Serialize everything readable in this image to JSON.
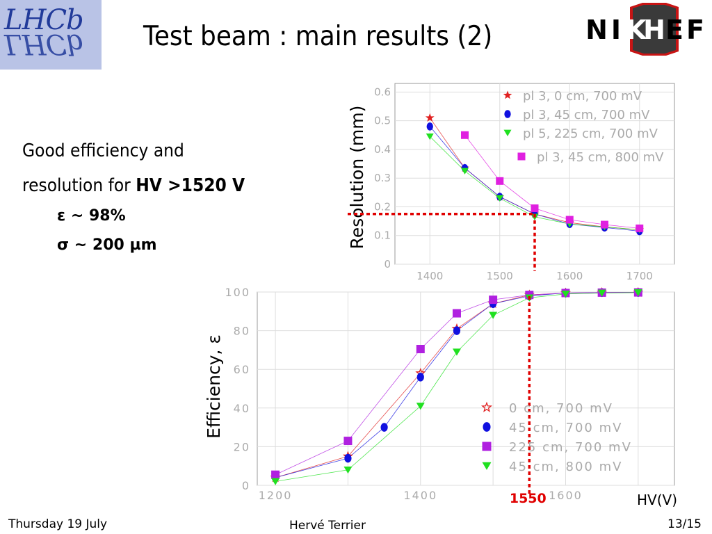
{
  "header": {
    "logo_left": {
      "name": "LHCb",
      "text": "LHCb"
    },
    "title": "Test beam : main results (2)",
    "logo_right": {
      "name": "NIKHEF",
      "letters": [
        "N",
        "I",
        "K",
        "H",
        "E",
        "F"
      ]
    }
  },
  "text": {
    "line1": "Good efficiency and",
    "line2_prefix": "resolution for ",
    "line2_bold": "HV >1520 V",
    "eps": "ε ~ 98%",
    "sigma": "σ ~ 200 µm"
  },
  "footer": {
    "date": "Thursday 19 July",
    "author": "Hervé Terrier",
    "page": "13/15"
  },
  "colors": {
    "red": "#e02020",
    "blue": "#1010e0",
    "green": "#20e020",
    "magenta": "#e020e0",
    "violet": "#b020e0",
    "marker_red": "#e02020"
  },
  "chart_data": [
    {
      "type": "scatter",
      "ylabel": "Resolution (mm)",
      "xlim": [
        1350,
        1750
      ],
      "ylim": [
        0,
        0.63
      ],
      "xticks": [
        1400,
        1500,
        1600,
        1700
      ],
      "yticks": [
        0,
        0.1,
        0.2,
        0.3,
        0.4,
        0.5,
        0.6
      ],
      "ytick_labels": [
        "0",
        "0.1",
        "0.2",
        "0.3",
        "0.4",
        "0.5",
        "0.6"
      ],
      "grid": true,
      "legend_position": "top-right",
      "marker_line": {
        "x": 1550,
        "y": 0.175
      },
      "series": [
        {
          "name": "pl 3, 0 cm, 700 mV",
          "marker": "star",
          "color": "#e02020",
          "x": [
            1400,
            1450,
            1500,
            1550,
            1600,
            1650,
            1700
          ],
          "y": [
            0.51,
            0.335,
            0.235,
            0.175,
            0.145,
            0.13,
            0.12
          ]
        },
        {
          "name": "pl 3, 45 cm, 700 mV",
          "marker": "ellipse",
          "color": "#1010e0",
          "x": [
            1400,
            1450,
            1500,
            1550,
            1600,
            1650,
            1700
          ],
          "y": [
            0.48,
            0.335,
            0.235,
            0.175,
            0.14,
            0.128,
            0.115
          ]
        },
        {
          "name": "pl 5, 225 cm, 700 mV",
          "marker": "triangle",
          "color": "#20e020",
          "x": [
            1400,
            1450,
            1500,
            1550,
            1600,
            1650,
            1700
          ],
          "y": [
            0.445,
            0.325,
            0.23,
            0.165,
            0.14,
            0.13,
            0.12
          ]
        },
        {
          "name": "pl 3, 45 cm, 800 mV",
          "marker": "square",
          "color": "#e020e0",
          "x": [
            1450,
            1500,
            1550,
            1600,
            1650,
            1700
          ],
          "y": [
            0.45,
            0.29,
            0.195,
            0.155,
            0.138,
            0.125
          ]
        }
      ]
    },
    {
      "type": "scatter",
      "ylabel": "Efficiency, ε",
      "xlabel": "HV(V)",
      "xlim": [
        1175,
        1750
      ],
      "ylim": [
        0,
        100
      ],
      "xticks": [
        1200,
        1400,
        1600
      ],
      "yticks": [
        0,
        20,
        40,
        60,
        80,
        100
      ],
      "grid": true,
      "legend_position": "bottom-right",
      "marker_line": {
        "x": 1550,
        "label": "1550"
      },
      "series": [
        {
          "name": "0 cm, 700 mV",
          "marker": "star",
          "color": "#e02020",
          "x": [
            1200,
            1300,
            1400,
            1450,
            1500,
            1550,
            1600,
            1650,
            1700
          ],
          "y": [
            4,
            15,
            58,
            81,
            94,
            98.5,
            99.5,
            99.7,
            99.8
          ]
        },
        {
          "name": "45 cm, 700 mV",
          "marker": "ellipse",
          "color": "#1010e0",
          "x": [
            1200,
            1300,
            1350,
            1400,
            1450,
            1500,
            1550,
            1600,
            1650,
            1700
          ],
          "y": [
            4,
            14,
            30,
            56,
            80,
            94,
            98,
            99.5,
            99.7,
            99.8
          ]
        },
        {
          "name": "225 cm, 700 mV",
          "marker": "square",
          "color": "#b020e0",
          "x": [
            1200,
            1300,
            1400,
            1450,
            1500,
            1550,
            1600,
            1650,
            1700
          ],
          "y": [
            5.5,
            23,
            70.5,
            89,
            96,
            98.5,
            99.5,
            99.7,
            99.8
          ]
        },
        {
          "name": "45 cm, 800 mV",
          "marker": "triangle",
          "color": "#20e020",
          "x": [
            1200,
            1300,
            1400,
            1450,
            1500,
            1550,
            1600,
            1650,
            1700
          ],
          "y": [
            2,
            8,
            41,
            69,
            88,
            97,
            99,
            99.5,
            99.7
          ]
        }
      ]
    }
  ]
}
